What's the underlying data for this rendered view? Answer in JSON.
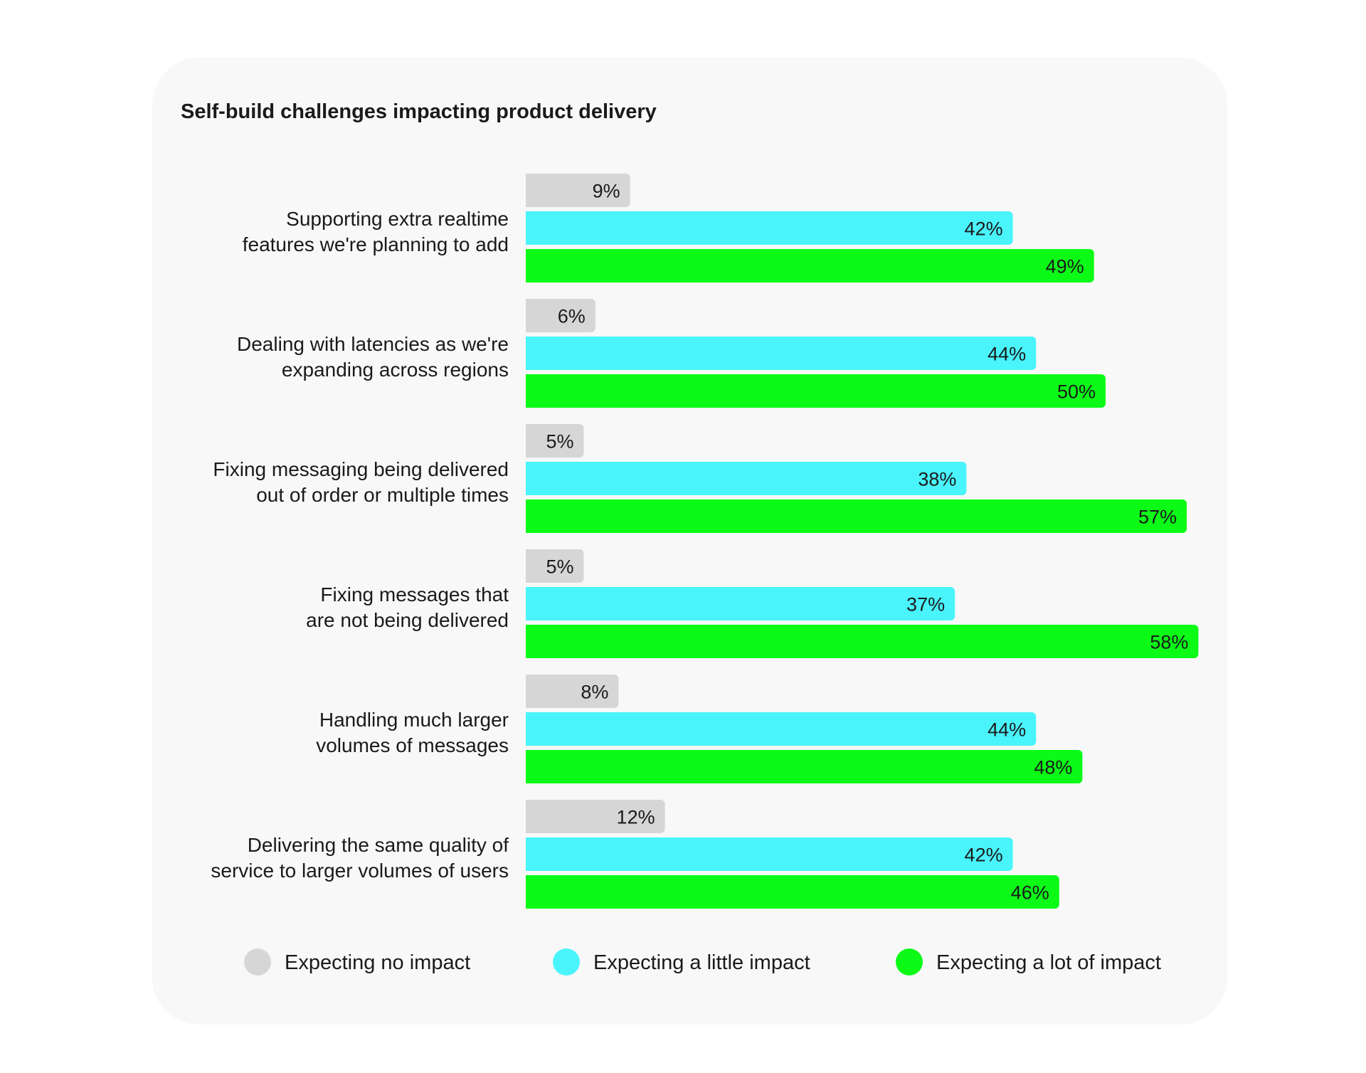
{
  "colors": {
    "card_background": "#f8f8f8",
    "text": "#1a1a1a",
    "no_impact": "#d6d6d6",
    "little_impact": "#4af4fb",
    "lot_of_impact": "#0bfb17"
  },
  "chart_data": {
    "type": "bar",
    "orientation": "horizontal",
    "title": "Self-build challenges impacting product delivery",
    "categories": [
      [
        "Supporting extra realtime",
        "features we're planning to add"
      ],
      [
        "Dealing with latencies as we're",
        "expanding across regions"
      ],
      [
        "Fixing messaging being delivered",
        "out of order or multiple times"
      ],
      [
        "Fixing messages that",
        "are not being delivered"
      ],
      [
        "Handling much larger",
        "volumes of messages"
      ],
      [
        "Delivering the same quality of",
        "service to larger volumes of users"
      ]
    ],
    "series": [
      {
        "name": "Expecting no impact",
        "color": "#d6d6d6",
        "values": [
          9,
          6,
          5,
          5,
          8,
          12
        ],
        "labels": [
          "9%",
          "6%",
          "5%",
          "5%",
          "8%",
          "12%"
        ]
      },
      {
        "name": "Expecting a little impact",
        "color": "#4af4fb",
        "values": [
          42,
          44,
          38,
          37,
          44,
          42
        ],
        "labels": [
          "42%",
          "44%",
          "38%",
          "37%",
          "44%",
          "42%"
        ]
      },
      {
        "name": "Expecting a lot of impact",
        "color": "#0bfb17",
        "values": [
          49,
          50,
          57,
          58,
          48,
          46
        ],
        "labels": [
          "49%",
          "50%",
          "57%",
          "58%",
          "48%",
          "46%"
        ]
      }
    ],
    "unit": "%",
    "xlim": [
      0,
      58
    ],
    "axes_visible": false,
    "grid": false,
    "legend": "bottom"
  }
}
